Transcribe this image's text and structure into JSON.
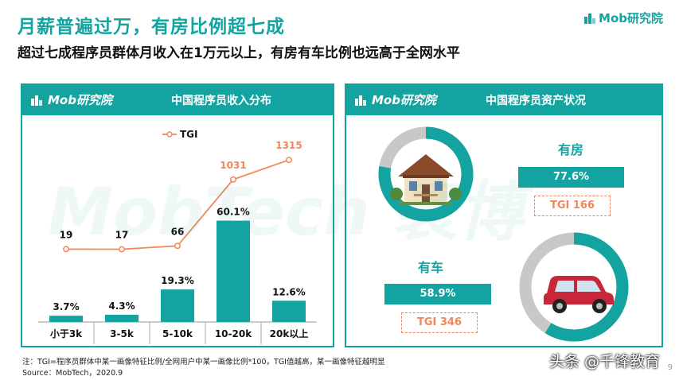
{
  "header": {
    "title": "月薪普遍过万，有房比例超七成",
    "subtitle": "超过七成程序员群体月收入在1万元以上，有房有车比例也远高于全网水平",
    "brand": "Mob研究院"
  },
  "left_panel": {
    "brand": "Mob研究院",
    "title": "中国程序员收入分布"
  },
  "right_panel": {
    "brand": "Mob研究院",
    "title": "中国程序员资产状况"
  },
  "watermark": {
    "text": "MobTech 袤博"
  },
  "chart_data": [
    {
      "type": "bar",
      "title": "中国程序员收入分布",
      "categories": [
        "小于3k",
        "3-5k",
        "5-10k",
        "10-20k",
        "20k以上"
      ],
      "values": [
        3.7,
        4.3,
        19.3,
        60.1,
        12.6
      ],
      "value_labels": [
        "3.7%",
        "4.3%",
        "19.3%",
        "60.1%",
        "12.6%"
      ],
      "ylim": [
        0,
        100
      ],
      "line_series": {
        "name": "TGI",
        "values": [
          19,
          17,
          66,
          1031,
          1315
        ],
        "labels": [
          "19",
          "17",
          "66",
          "1031",
          "1315"
        ],
        "ylim": [
          0,
          1500
        ]
      },
      "legend": "top-center",
      "colors": {
        "bar": "#13a3a0",
        "line": "#f0875a"
      }
    },
    {
      "type": "pie",
      "title": "有房",
      "value": 77.6,
      "value_label": "77.6%",
      "tgi_label": "TGI  166",
      "colors": {
        "fill": "#13a3a0",
        "rest": "#c8c8c8"
      }
    },
    {
      "type": "pie",
      "title": "有车",
      "value": 58.9,
      "value_label": "58.9%",
      "tgi_label": "TGI   346",
      "colors": {
        "fill": "#13a3a0",
        "rest": "#c8c8c8"
      }
    }
  ],
  "footnote": {
    "note": "注：TGI=程序员群体中某一画像特征比例/全网用户中某一画像比例*100，TGI值越高，某一画像特征越明显",
    "source": "Source：MobTech，2020.9"
  },
  "credit": "头条 @千锋教育",
  "page_number": "9"
}
